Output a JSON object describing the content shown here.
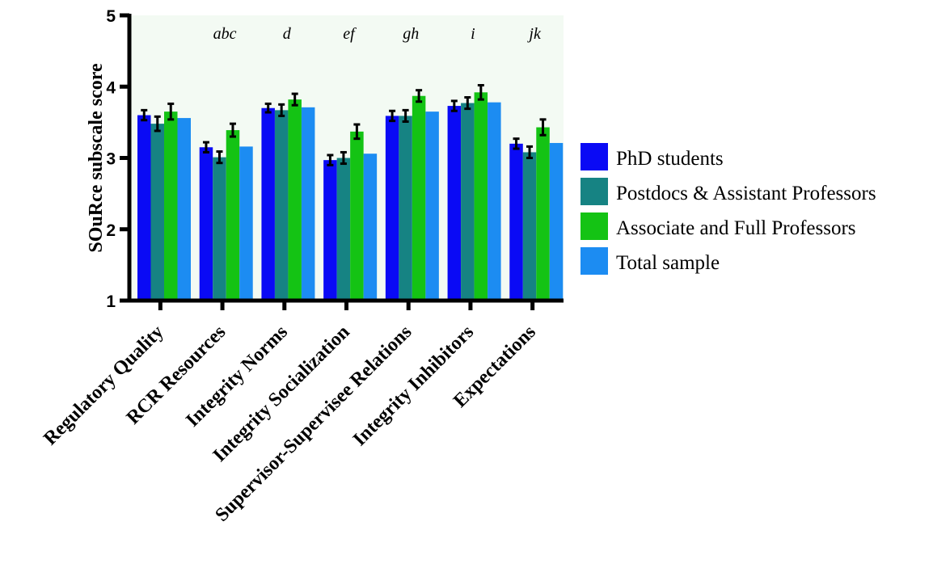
{
  "chart_data": {
    "type": "bar",
    "title": "",
    "xlabel": "",
    "ylabel": "SOuRce subscale score",
    "ylim": [
      1,
      5
    ],
    "yticks": [
      1,
      2,
      3,
      4,
      5
    ],
    "grid": false,
    "legend_position": "right",
    "plot_background": "#f3faf3",
    "categories": [
      "Regulatory Quality",
      "RCR Resources",
      "Integrity Norms",
      "Integrity Socialization",
      "Supervisor-Supervisee Relations",
      "Integrity Inhibitors",
      "Expectations"
    ],
    "annotations": [
      "",
      "abc",
      "d",
      "ef",
      "gh",
      "i",
      "jk"
    ],
    "series": [
      {
        "name": "PhD students",
        "color": "#0a0af5",
        "values": [
          3.6,
          3.15,
          3.7,
          2.97,
          3.59,
          3.73,
          3.2
        ],
        "errors": [
          0.07,
          0.07,
          0.06,
          0.07,
          0.07,
          0.07,
          0.07
        ]
      },
      {
        "name": "Postdocs & Assistant Professors",
        "color": "#168383",
        "values": [
          3.48,
          3.01,
          3.67,
          3.0,
          3.59,
          3.77,
          3.08
        ],
        "errors": [
          0.1,
          0.08,
          0.08,
          0.08,
          0.08,
          0.08,
          0.08
        ]
      },
      {
        "name": "Associate and Full Professors",
        "color": "#14c314",
        "values": [
          3.65,
          3.39,
          3.82,
          3.37,
          3.87,
          3.92,
          3.43
        ],
        "errors": [
          0.11,
          0.09,
          0.08,
          0.1,
          0.08,
          0.1,
          0.11
        ]
      },
      {
        "name": "Total sample",
        "color": "#1c8cf2",
        "values": [
          3.56,
          3.16,
          3.71,
          3.06,
          3.65,
          3.78,
          3.21
        ],
        "errors": null
      }
    ]
  }
}
